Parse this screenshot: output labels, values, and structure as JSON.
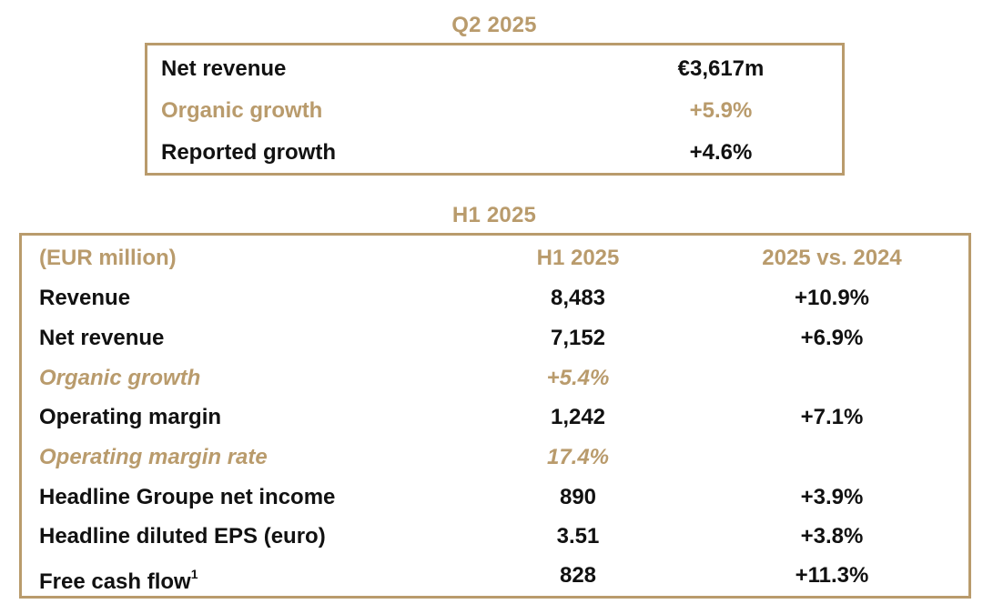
{
  "q2": {
    "title": "Q2 2025",
    "rows": [
      {
        "label": "Net revenue",
        "value": "€3,617m"
      },
      {
        "label": "Organic growth",
        "value": "+5.9%"
      },
      {
        "label": "Reported growth",
        "value": "+4.6%"
      }
    ]
  },
  "h1": {
    "title": "H1 2025",
    "header": {
      "label": "(EUR million)",
      "col1": "H1 2025",
      "col2": "2025 vs. 2024"
    },
    "rows": [
      {
        "label": "Revenue",
        "col1": "8,483",
        "col2": "+10.9%"
      },
      {
        "label": "Net revenue",
        "col1": "7,152",
        "col2": "+6.9%"
      },
      {
        "label": "Organic growth",
        "col1": "+5.4%",
        "col2": ""
      },
      {
        "label": "Operating margin",
        "col1": "1,242",
        "col2": "+7.1%"
      },
      {
        "label": "Operating margin rate",
        "col1": "17.4%",
        "col2": ""
      },
      {
        "label": "Headline Groupe net income",
        "col1": "890",
        "col2": "+3.9%"
      },
      {
        "label": "Headline diluted EPS (euro)",
        "col1": "3.51",
        "col2": "+3.8%"
      },
      {
        "label": "Free cash flow",
        "footnote": "1",
        "col1": "828",
        "col2": "+11.3%"
      }
    ]
  },
  "colors": {
    "accent": "#b99b6c",
    "text": "#111111"
  }
}
